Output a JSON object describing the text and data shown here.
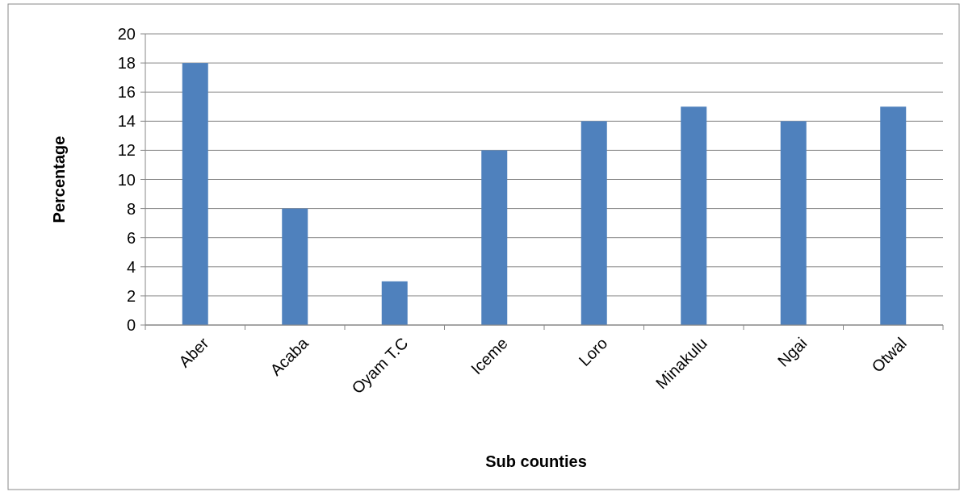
{
  "chart_data": {
    "type": "bar",
    "xlabel": "Sub counties",
    "ylabel": "Percentage",
    "categories": [
      "Aber",
      "Acaba",
      "Oyam T.C",
      "Iceme",
      "Loro",
      "Minakulu",
      "Ngai",
      "Otwal"
    ],
    "values": [
      18,
      8,
      3,
      12,
      14,
      15,
      14,
      15
    ],
    "color": "#4f81bd",
    "ylim": [
      0,
      20
    ],
    "yticks": [
      0,
      2,
      4,
      6,
      8,
      10,
      12,
      14,
      16,
      18,
      20
    ],
    "grid": "y"
  }
}
